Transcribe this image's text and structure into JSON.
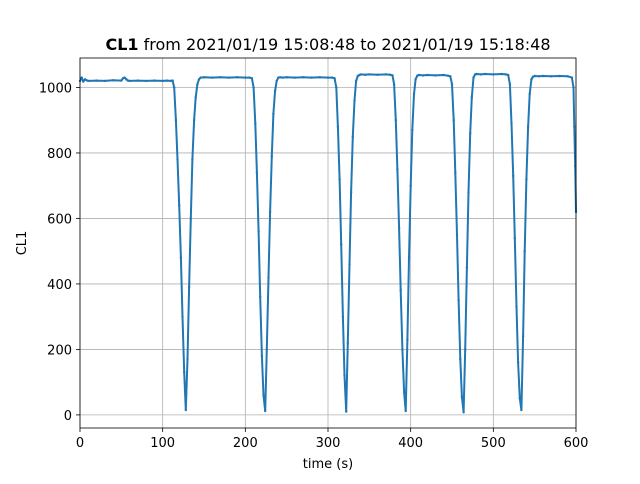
{
  "chart_data": {
    "type": "line",
    "title_bold": "CL1",
    "title_rest": " from 2021/01/19 15:08:48 to 2021/01/19 15:18:48",
    "xlabel": "time (s)",
    "ylabel": "CL1",
    "xlim": [
      0,
      600
    ],
    "ylim": [
      -40,
      1090
    ],
    "xticks": [
      0,
      100,
      200,
      300,
      400,
      500,
      600
    ],
    "yticks": [
      0,
      200,
      400,
      600,
      800,
      1000
    ],
    "grid": true,
    "line_color": "#1f77b4",
    "series": [
      {
        "x": [
          0,
          2,
          4,
          6,
          8,
          10,
          20,
          30,
          40,
          50,
          52,
          54,
          56,
          58,
          60,
          70,
          80,
          90,
          100,
          105,
          110,
          112,
          114,
          116,
          118,
          120,
          122,
          124,
          126,
          128,
          130,
          132,
          134,
          136,
          138,
          140,
          142,
          144,
          146,
          150,
          160,
          170,
          180,
          190,
          200,
          205,
          208,
          210,
          212,
          214,
          216,
          218,
          220,
          222,
          224,
          226,
          228,
          230,
          232,
          234,
          236,
          238,
          240,
          242,
          245,
          250,
          260,
          270,
          280,
          290,
          300,
          305,
          308,
          310,
          312,
          314,
          316,
          318,
          320,
          322,
          324,
          326,
          328,
          330,
          332,
          334,
          336,
          338,
          340,
          345,
          350,
          360,
          370,
          375,
          378,
          380,
          382,
          384,
          386,
          388,
          390,
          392,
          394,
          396,
          398,
          400,
          402,
          404,
          406,
          408,
          410,
          415,
          420,
          430,
          440,
          445,
          448,
          450,
          452,
          454,
          456,
          458,
          460,
          462,
          464,
          466,
          468,
          470,
          472,
          474,
          476,
          478,
          480,
          485,
          490,
          500,
          510,
          515,
          518,
          520,
          522,
          524,
          526,
          528,
          530,
          532,
          534,
          536,
          538,
          540,
          542,
          544,
          546,
          548,
          550,
          555,
          560,
          570,
          580,
          590,
          595,
          597,
          598,
          599,
          600
        ],
        "y": [
          1020,
          1030,
          1018,
          1025,
          1022,
          1020,
          1021,
          1020,
          1022,
          1021,
          1028,
          1030,
          1025,
          1021,
          1020,
          1021,
          1020,
          1021,
          1020,
          1021,
          1020,
          1021,
          1000,
          900,
          780,
          640,
          480,
          300,
          130,
          15,
          170,
          390,
          600,
          780,
          900,
          970,
          1010,
          1025,
          1030,
          1031,
          1030,
          1031,
          1030,
          1031,
          1030,
          1030,
          1028,
          1000,
          890,
          740,
          560,
          360,
          180,
          60,
          12,
          200,
          420,
          620,
          790,
          920,
          990,
          1020,
          1030,
          1031,
          1030,
          1031,
          1030,
          1031,
          1030,
          1031,
          1030,
          1030,
          1028,
          1000,
          880,
          720,
          520,
          300,
          120,
          10,
          220,
          460,
          680,
          850,
          960,
          1020,
          1035,
          1038,
          1040,
          1039,
          1040,
          1039,
          1040,
          1039,
          1037,
          1010,
          900,
          750,
          570,
          380,
          200,
          70,
          12,
          230,
          480,
          700,
          870,
          980,
          1025,
          1036,
          1038,
          1037,
          1038,
          1037,
          1038,
          1036,
          1034,
          1010,
          900,
          740,
          550,
          350,
          170,
          55,
          8,
          200,
          450,
          680,
          860,
          970,
          1030,
          1040,
          1041,
          1040,
          1041,
          1040,
          1041,
          1040,
          1038,
          1010,
          890,
          730,
          540,
          330,
          160,
          50,
          15,
          240,
          500,
          720,
          880,
          980,
          1025,
          1033,
          1035,
          1034,
          1035,
          1034,
          1035,
          1034,
          1030,
          1000,
          880,
          760,
          620
        ]
      }
    ]
  }
}
